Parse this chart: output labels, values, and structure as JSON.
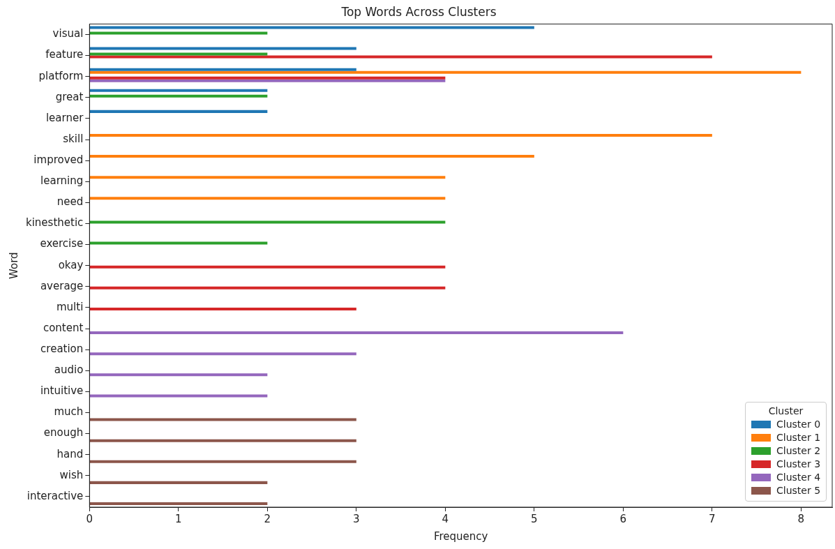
{
  "chart_data": {
    "type": "bar",
    "orientation": "horizontal",
    "title": "Top Words Across Clusters",
    "xlabel": "Frequency",
    "ylabel": "Word",
    "legend_title": "Cluster",
    "legend": "bottom right",
    "grid": false,
    "categories": [
      "visual",
      "feature",
      "platform",
      "great",
      "learner",
      "skill",
      "improved",
      "learning",
      "need",
      "kinesthetic",
      "exercise",
      "okay",
      "average",
      "multi",
      "content",
      "creation",
      "audio",
      "intuitive",
      "much",
      "enough",
      "hand",
      "wish",
      "interactive"
    ],
    "xlim": [
      0,
      8.35
    ],
    "xticks": [
      0,
      1,
      2,
      3,
      4,
      5,
      6,
      7,
      8
    ],
    "series": [
      {
        "name": "Cluster 0",
        "color": "#1f77b4",
        "values": [
          5,
          3,
          3,
          2,
          2,
          null,
          null,
          null,
          null,
          null,
          null,
          null,
          null,
          null,
          null,
          null,
          null,
          null,
          null,
          null,
          null,
          null,
          null
        ]
      },
      {
        "name": "Cluster 1",
        "color": "#ff7f0e",
        "values": [
          null,
          null,
          8,
          null,
          null,
          7,
          5,
          4,
          4,
          null,
          null,
          null,
          null,
          null,
          null,
          null,
          null,
          null,
          null,
          null,
          null,
          null,
          null
        ]
      },
      {
        "name": "Cluster 2",
        "color": "#2ca02c",
        "values": [
          2,
          2,
          null,
          2,
          null,
          null,
          null,
          null,
          null,
          4,
          2,
          null,
          null,
          null,
          null,
          null,
          null,
          null,
          null,
          null,
          null,
          null,
          null
        ]
      },
      {
        "name": "Cluster 3",
        "color": "#d62728",
        "values": [
          null,
          7,
          4,
          null,
          null,
          null,
          null,
          null,
          null,
          null,
          null,
          4,
          4,
          3,
          null,
          null,
          null,
          null,
          null,
          null,
          null,
          null,
          null
        ]
      },
      {
        "name": "Cluster 4",
        "color": "#9467bd",
        "values": [
          null,
          null,
          4,
          null,
          null,
          null,
          null,
          null,
          null,
          null,
          null,
          null,
          null,
          null,
          6,
          3,
          2,
          2,
          null,
          null,
          null,
          null,
          null
        ]
      },
      {
        "name": "Cluster 5",
        "color": "#8c564b",
        "values": [
          null,
          null,
          null,
          null,
          null,
          null,
          null,
          null,
          null,
          null,
          null,
          null,
          null,
          null,
          null,
          null,
          null,
          null,
          3,
          3,
          3,
          2,
          2
        ]
      }
    ]
  }
}
